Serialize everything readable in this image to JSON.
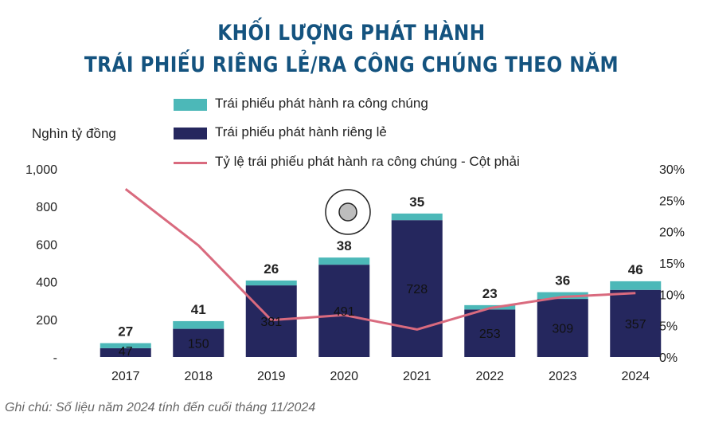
{
  "title_line1": "KHỐI LƯỢNG PHÁT HÀNH",
  "title_line2": "TRÁI PHIẾU RIÊNG LẺ/RA CÔNG CHÚNG THEO NĂM",
  "unit_label": "Nghìn tỷ đồng",
  "note": "Ghi chú: Số liệu năm 2024 tính đến cuối tháng 11/2024",
  "colors": {
    "public": "#4cb8b8",
    "private": "#25275e",
    "ratio_line": "#d96a7e",
    "title": "#14537f"
  },
  "chart_data": {
    "type": "bar",
    "stacked": true,
    "categories": [
      "2017",
      "2018",
      "2019",
      "2020",
      "2021",
      "2022",
      "2023",
      "2024"
    ],
    "series": [
      {
        "name": "Trái phiếu phát hành riêng lẻ",
        "type": "bar",
        "axis": "left",
        "values": [
          47,
          150,
          381,
          491,
          728,
          253,
          309,
          357
        ]
      },
      {
        "name": "Trái phiếu phát hành ra công chúng",
        "type": "bar",
        "axis": "left",
        "values": [
          27,
          41,
          26,
          38,
          35,
          23,
          36,
          46
        ]
      },
      {
        "name": "Tỷ lệ trái phiếu phát hành ra công chúng - Cột phải",
        "type": "line",
        "axis": "right",
        "values": [
          26.8,
          17.8,
          5.9,
          6.7,
          4.4,
          7.8,
          9.6,
          10.2
        ]
      }
    ],
    "legend": [
      "Trái phiếu phát hành ra công chúng",
      "Trái phiếu phát hành riêng lẻ",
      "Tỷ lệ trái phiếu phát hành ra công chúng - Cột phải"
    ],
    "legend_position": "top",
    "y_left": {
      "range": [
        0,
        1000
      ],
      "ticks": [
        "-",
        "200",
        "400",
        "600",
        "800",
        "1,000"
      ]
    },
    "y_right": {
      "range": [
        0,
        30
      ],
      "ticks": [
        "0%",
        "5%",
        "10%",
        "15%",
        "20%",
        "25%",
        "30%"
      ]
    },
    "grid": false
  }
}
